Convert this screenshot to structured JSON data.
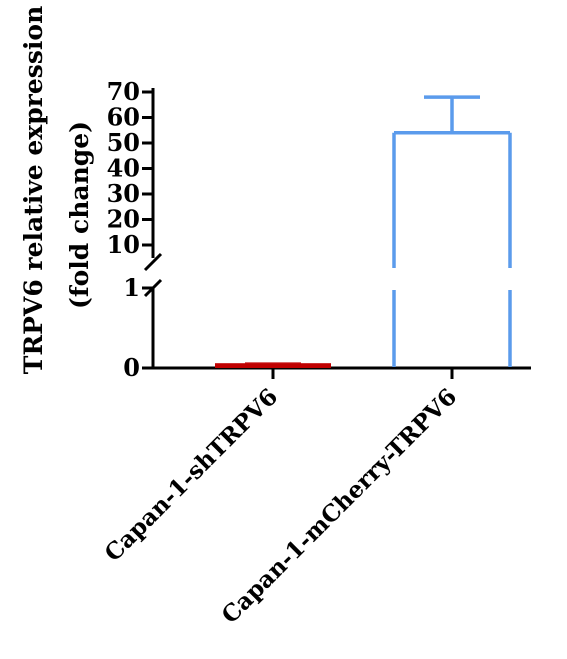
{
  "chart_data": {
    "type": "bar",
    "title": "",
    "xlabel": "",
    "ylabel_line1": "TRPV6 relative expression",
    "ylabel_line2": "(fold change)",
    "categories": [
      "Capan-1-shTRPV6",
      "Capan-1-mCherry-TRPV6"
    ],
    "values": [
      0.06,
      54
    ],
    "error_upper": [
      0.07,
      68
    ],
    "axis_break": true,
    "lower_segment": {
      "ylim": [
        0,
        1
      ],
      "ticks": [
        "0",
        "1"
      ]
    },
    "upper_segment": {
      "ylim": [
        5,
        70
      ],
      "ticks": [
        "10",
        "20",
        "30",
        "40",
        "50",
        "60",
        "70"
      ]
    },
    "bar_colors": [
      "#c00000",
      "#5b9bec"
    ],
    "bar_fill": [
      "#c00000",
      "none"
    ],
    "grid": false
  }
}
